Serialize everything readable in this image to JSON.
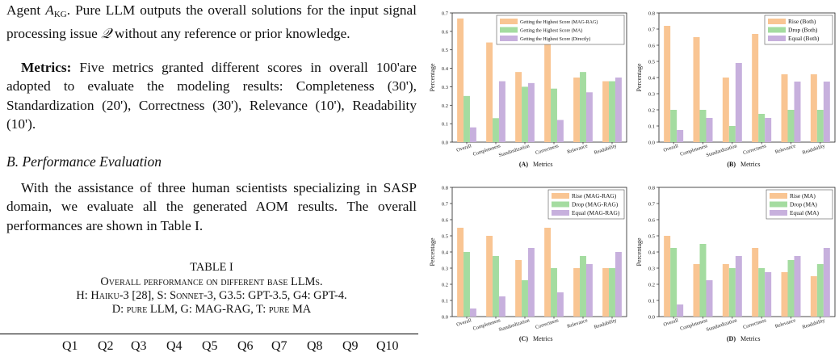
{
  "text": {
    "p1": "Agent ",
    "p1_agent": "A",
    "p1_sub": "KG",
    "p1_rest": ". Pure LLM outputs the overall solutions for the input signal processing issue ",
    "p1_q": "𝒬",
    "p1_end": " without any reference or prior knowledge.",
    "metrics_label": "Metrics:",
    "metrics_text": " Five metrics granted different scores in overall 100'are adopted to evaluate the modeling results: Completeness (30'), Standardization (20'), Correctness (30'), Relevance (10'), Readability (10').",
    "section_heading": "B.  Performance Evaluation",
    "p3": "With the assistance of three human scientists specializing in SASP domain, we evaluate all the generated AOM results. The overall performances are shown in Table I.",
    "table_label": "TABLE I",
    "table_caption_1": "Overall performance on different base LLMs.",
    "table_caption_2": "H: Haiku-3 [28], S: Sonnet-3, G3.5: GPT-3.5, G4: GPT-4.",
    "table_caption_3": "D: pure LLM, G: MAG-RAG, T: pure MA",
    "table_columns": [
      "Q1",
      "Q2",
      "Q3",
      "Q4",
      "Q5",
      "Q6",
      "Q7",
      "Q8",
      "Q9",
      "Q10"
    ]
  },
  "colors": {
    "orange": "#f9c593",
    "green": "#a4dca0",
    "purple": "#c7b0dd"
  },
  "chart_data": [
    {
      "type": "bar",
      "panel": "(A)",
      "xlabel": "Metrics",
      "ylabel": "Percentage",
      "ylim": [
        0,
        0.7
      ],
      "yticks": [
        "0.0",
        "0.1",
        "0.2",
        "0.3",
        "0.4",
        "0.5",
        "0.6",
        "0.7"
      ],
      "categories": [
        "Overall",
        "Completeness",
        "Standardization",
        "Correctness",
        "Relevance",
        "Readability"
      ],
      "legend_position": "top-right",
      "series": [
        {
          "name": "Getting the Highest Score (MAG-RAG)",
          "values": [
            0.67,
            0.54,
            0.38,
            0.59,
            0.35,
            0.33
          ]
        },
        {
          "name": "Getting the Highest Score (MA)",
          "values": [
            0.25,
            0.13,
            0.3,
            0.29,
            0.38,
            0.33
          ]
        },
        {
          "name": "Getting the Highest Score (Directly)",
          "values": [
            0.08,
            0.33,
            0.32,
            0.12,
            0.27,
            0.35
          ]
        }
      ]
    },
    {
      "type": "bar",
      "panel": "(B)",
      "xlabel": "Metrics",
      "ylabel": "Percentage",
      "ylim": [
        0,
        0.8
      ],
      "yticks": [
        "0.0",
        "0.1",
        "0.2",
        "0.3",
        "0.4",
        "0.5",
        "0.6",
        "0.7",
        "0.8"
      ],
      "categories": [
        "Overall",
        "Completeness",
        "Standardization",
        "Correctness",
        "Relevance",
        "Readability"
      ],
      "legend_position": "top-right",
      "series": [
        {
          "name": "Rise (Both)",
          "values": [
            0.72,
            0.65,
            0.4,
            0.67,
            0.42,
            0.42
          ]
        },
        {
          "name": "Drop (Both)",
          "values": [
            0.2,
            0.2,
            0.1,
            0.175,
            0.2,
            0.2
          ]
        },
        {
          "name": "Equal (Both)",
          "values": [
            0.075,
            0.15,
            0.49,
            0.15,
            0.375,
            0.375
          ]
        }
      ]
    },
    {
      "type": "bar",
      "panel": "(C)",
      "xlabel": "Metrics",
      "ylabel": "Percentage",
      "ylim": [
        0,
        0.8
      ],
      "yticks": [
        "0.0",
        "0.1",
        "0.2",
        "0.3",
        "0.4",
        "0.5",
        "0.6",
        "0.7",
        "0.8"
      ],
      "categories": [
        "Overall",
        "Completeness",
        "Standardization",
        "Correctness",
        "Relevance",
        "Readability"
      ],
      "legend_position": "top-right",
      "series": [
        {
          "name": "Rise (MAG-RAG)",
          "values": [
            0.55,
            0.5,
            0.35,
            0.55,
            0.3,
            0.3
          ]
        },
        {
          "name": "Drop (MAG-RAG)",
          "values": [
            0.4,
            0.375,
            0.225,
            0.3,
            0.375,
            0.3
          ]
        },
        {
          "name": "Equal (MAG-RAG)",
          "values": [
            0.05,
            0.125,
            0.425,
            0.15,
            0.325,
            0.4
          ]
        }
      ]
    },
    {
      "type": "bar",
      "panel": "(D)",
      "xlabel": "Metrics",
      "ylabel": "Percentage",
      "ylim": [
        0,
        0.8
      ],
      "yticks": [
        "0.0",
        "0.1",
        "0.2",
        "0.3",
        "0.4",
        "0.5",
        "0.6",
        "0.7",
        "0.8"
      ],
      "categories": [
        "Overall",
        "Completeness",
        "Standardization",
        "Correctness",
        "Relevance",
        "Readability"
      ],
      "legend_position": "top-right",
      "series": [
        {
          "name": "Rise (MA)",
          "values": [
            0.5,
            0.325,
            0.325,
            0.425,
            0.275,
            0.25
          ]
        },
        {
          "name": "Drop (MA)",
          "values": [
            0.425,
            0.45,
            0.3,
            0.3,
            0.35,
            0.325
          ]
        },
        {
          "name": "Equal (MA)",
          "values": [
            0.075,
            0.225,
            0.375,
            0.275,
            0.375,
            0.425
          ]
        }
      ]
    }
  ]
}
